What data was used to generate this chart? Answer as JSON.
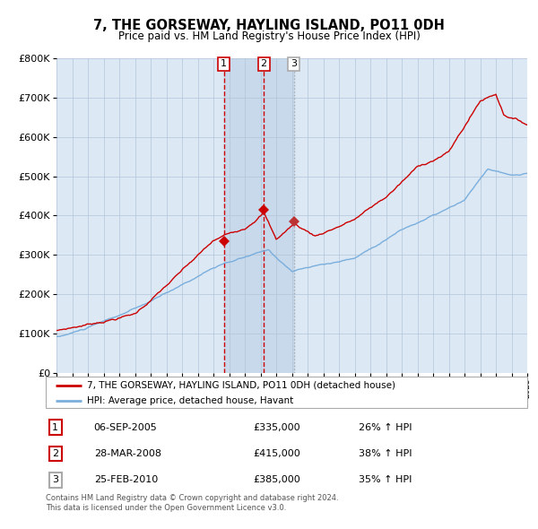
{
  "title": "7, THE GORSEWAY, HAYLING ISLAND, PO11 0DH",
  "subtitle": "Price paid vs. HM Land Registry's House Price Index (HPI)",
  "legend_line1": "7, THE GORSEWAY, HAYLING ISLAND, PO11 0DH (detached house)",
  "legend_line2": "HPI: Average price, detached house, Havant",
  "transactions": [
    {
      "num": 1,
      "date": "06-SEP-2005",
      "price": "£335,000",
      "pct": "26% ↑ HPI",
      "year": 2005.67,
      "value": 335000,
      "color": "#cc0000",
      "linestyle": "--"
    },
    {
      "num": 2,
      "date": "28-MAR-2008",
      "price": "£415,000",
      "pct": "38% ↑ HPI",
      "year": 2008.21,
      "value": 415000,
      "color": "#cc0000",
      "linestyle": "--"
    },
    {
      "num": 3,
      "date": "25-FEB-2010",
      "price": "£385,000",
      "pct": "35% ↑ HPI",
      "year": 2010.12,
      "value": 385000,
      "color": "#aaaaaa",
      "linestyle": ":"
    }
  ],
  "footer1": "Contains HM Land Registry data © Crown copyright and database right 2024.",
  "footer2": "This data is licensed under the Open Government Licence v3.0.",
  "ylim": [
    0,
    800000
  ],
  "yticks": [
    0,
    100000,
    200000,
    300000,
    400000,
    500000,
    600000,
    700000,
    800000
  ],
  "xlim": [
    1995,
    2025
  ],
  "red_color": "#cc0000",
  "blue_color": "#7aaedc",
  "bg_color": "#dce9f5",
  "shade_color": "#c8d9ec",
  "grid_color": "#b0c4d8",
  "white": "#ffffff"
}
